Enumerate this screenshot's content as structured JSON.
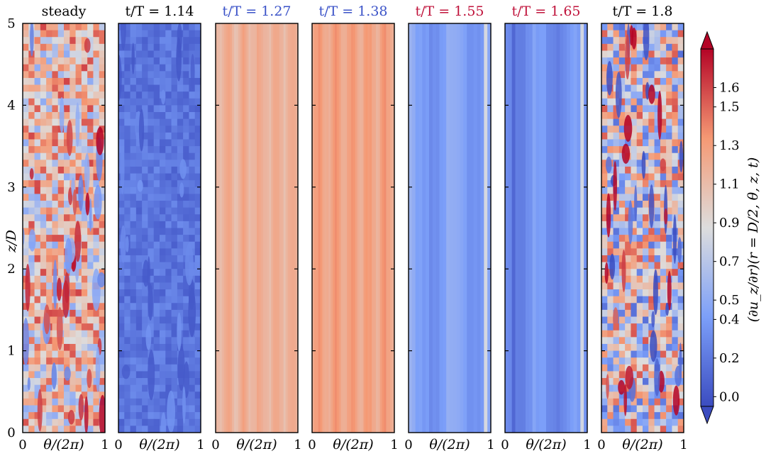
{
  "chart_data": {
    "type": "heatmap",
    "colormap": "coolwarm",
    "panels": [
      {
        "title": "steady",
        "title_color": "#000000",
        "pattern": "turbulent",
        "mean": 1.05,
        "amplitude": 0.55
      },
      {
        "title": "t/T = 1.14",
        "title_color": "#000000",
        "pattern": "turbulent-low",
        "mean": 0.18,
        "amplitude": 0.12
      },
      {
        "title": "t/T = 1.27",
        "title_color": "#3b53c8",
        "pattern": "streaky",
        "mean": 1.18,
        "amplitude": 0.08
      },
      {
        "title": "t/T = 1.38",
        "title_color": "#3b53c8",
        "pattern": "streaky",
        "mean": 1.26,
        "amplitude": 0.08
      },
      {
        "title": "t/T = 1.55",
        "title_color": "#c0143c",
        "pattern": "laminar-bands",
        "mean": 0.42,
        "amplitude": 0.1
      },
      {
        "title": "t/T = 1.65",
        "title_color": "#c0143c",
        "pattern": "laminar-bands",
        "mean": 0.33,
        "amplitude": 0.1
      },
      {
        "title": "t/T = 1.8",
        "title_color": "#000000",
        "pattern": "turbulent",
        "mean": 0.85,
        "amplitude": 0.7
      }
    ],
    "xlabel": "θ/(2π)",
    "x_ticks": [
      "0",
      "1"
    ],
    "xlim": [
      0,
      1
    ],
    "ylabel": "z/D",
    "y_ticks": [
      "0",
      "1",
      "2",
      "3",
      "4",
      "5"
    ],
    "ylim": [
      0,
      5
    ],
    "colorbar": {
      "label": "(∂u_z/∂r)(r = D/2, θ, z, t)",
      "ticks": [
        "0.0",
        "0.2",
        "0.4",
        "0.5",
        "0.7",
        "0.9",
        "1.1",
        "1.3",
        "1.5",
        "1.6"
      ],
      "vmin": -0.05,
      "vmax": 1.8,
      "extend": "both"
    }
  }
}
